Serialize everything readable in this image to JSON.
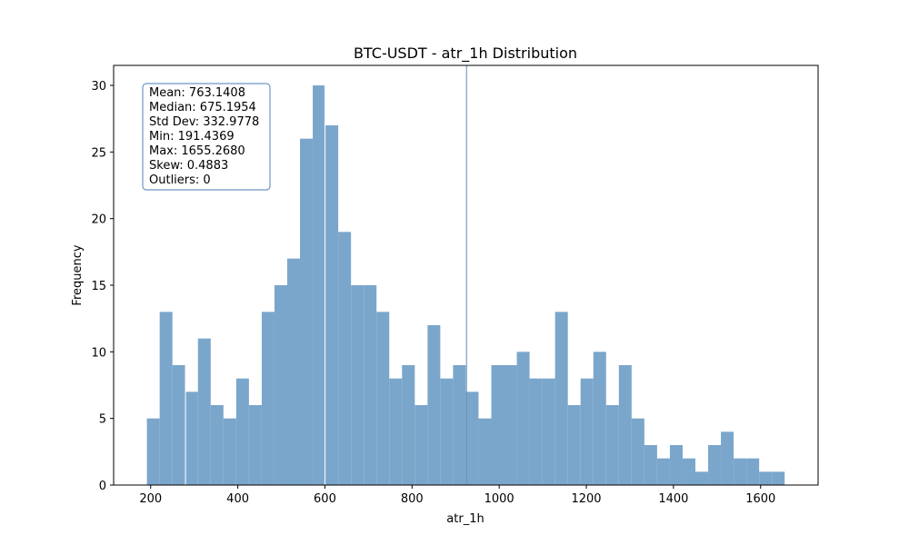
{
  "chart_data": {
    "type": "bar",
    "title": "BTC-USDT - atr_1h Distribution",
    "xlabel": "atr_1h",
    "ylabel": "Frequency",
    "xlim": [
      115,
      1732
    ],
    "ylim": [
      0,
      31.5
    ],
    "xticks": [
      200,
      400,
      600,
      800,
      1000,
      1200,
      1400,
      1600
    ],
    "yticks": [
      0,
      5,
      10,
      15,
      20,
      25,
      30
    ],
    "grid": false,
    "bar_color": "#7ba6cb",
    "bins": {
      "start": 191.4369,
      "end": 1655.268,
      "counts": [
        5,
        13,
        9,
        7,
        11,
        6,
        5,
        8,
        6,
        13,
        15,
        17,
        26,
        30,
        27,
        19,
        15,
        15,
        13,
        8,
        9,
        6,
        12,
        8,
        9,
        7,
        5,
        9,
        9,
        10,
        8,
        8,
        13,
        6,
        8,
        10,
        6,
        9,
        5,
        3,
        2,
        3,
        2,
        1,
        3,
        4,
        2,
        2,
        1,
        1
      ]
    },
    "vertical_markers": [
      {
        "x": 280,
        "color": "#ffffff"
      },
      {
        "x": 600,
        "color": "#ffffff"
      },
      {
        "x": 925,
        "color": "#5b8db8"
      }
    ],
    "stats_box": {
      "lines": [
        "Mean: 763.1408",
        "Median: 675.1954",
        "Std Dev: 332.9778",
        "Min: 191.4369",
        "Max: 1655.2680",
        "Skew: 0.4883",
        "Outliers: 0"
      ],
      "border_color": "#6e98c2",
      "placement": "top-left"
    }
  }
}
